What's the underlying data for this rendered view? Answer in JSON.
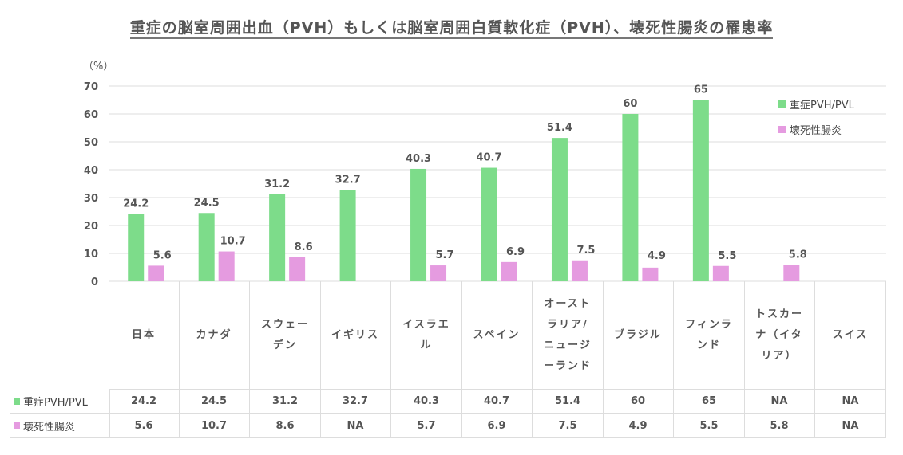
{
  "chart_data": {
    "type": "bar",
    "title": "重症の脳室周囲出血（PVH）もしくは脳室周囲白質軟化症（PVH）、壊死性腸炎の罹患率",
    "ylabel": "（%）",
    "ylim": [
      0,
      70
    ],
    "yticks": [
      "0",
      "10",
      "20",
      "30",
      "40",
      "50",
      "60",
      "70"
    ],
    "categories": [
      "日本",
      "カナダ",
      "スウェーデン",
      "イギリス",
      "イスラエル",
      "スペイン",
      "オーストラリア/ニュージーランド",
      "ブラジル",
      "フィンランド",
      "トスカーナ（イタリア）",
      "スイス"
    ],
    "legend_position": "top-right",
    "grid": true,
    "series": [
      {
        "name": "重症PVH/PVL",
        "color": "#7ddc8a",
        "values": [
          24.2,
          24.5,
          31.2,
          32.7,
          40.3,
          40.7,
          51.4,
          60,
          65,
          null,
          null
        ],
        "table": [
          "24.2",
          "24.5",
          "31.2",
          "32.7",
          "40.3",
          "40.7",
          "51.4",
          "60",
          "65",
          "NA",
          "NA"
        ]
      },
      {
        "name": "壊死性腸炎",
        "color": "#e59be0",
        "values": [
          5.6,
          10.7,
          8.6,
          null,
          5.7,
          6.9,
          7.5,
          4.9,
          5.5,
          5.8,
          null
        ],
        "table": [
          "5.6",
          "10.7",
          "8.6",
          "NA",
          "5.7",
          "6.9",
          "7.5",
          "4.9",
          "5.5",
          "5.8",
          "NA"
        ]
      }
    ]
  }
}
